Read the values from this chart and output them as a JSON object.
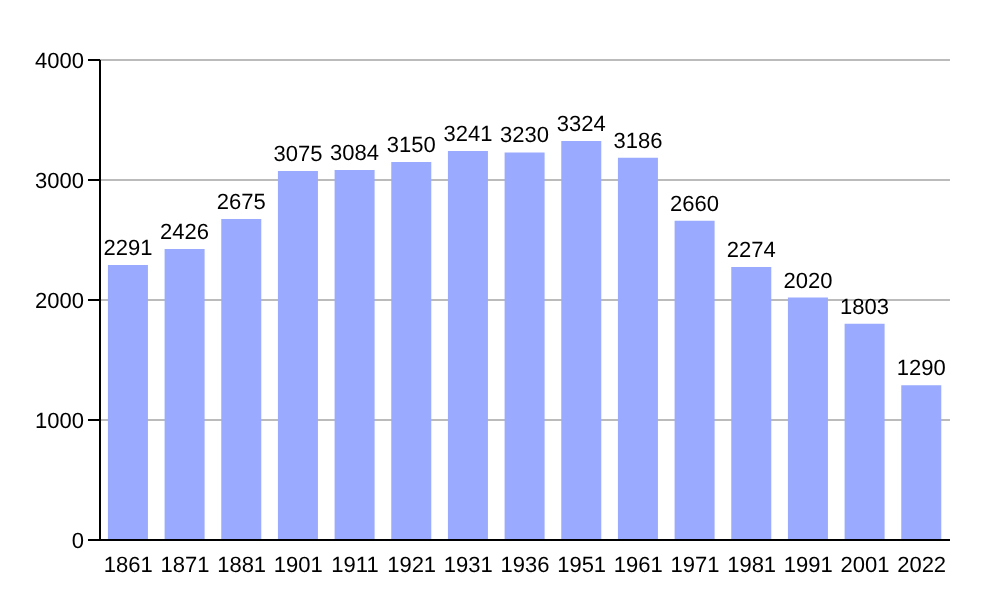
{
  "chart_data": {
    "type": "bar",
    "categories": [
      "1861",
      "1871",
      "1881",
      "1901",
      "1911",
      "1921",
      "1931",
      "1936",
      "1951",
      "1961",
      "1971",
      "1981",
      "1991",
      "2001",
      "2022"
    ],
    "values": [
      2291,
      2426,
      2675,
      3075,
      3084,
      3150,
      3241,
      3230,
      3324,
      3186,
      2660,
      2274,
      2020,
      1803,
      1290
    ],
    "color": "#99aaff",
    "ylim": [
      0,
      4000
    ],
    "yticks": [
      0,
      1000,
      2000,
      3000,
      4000
    ],
    "grid": "y",
    "data_labels": true
  }
}
